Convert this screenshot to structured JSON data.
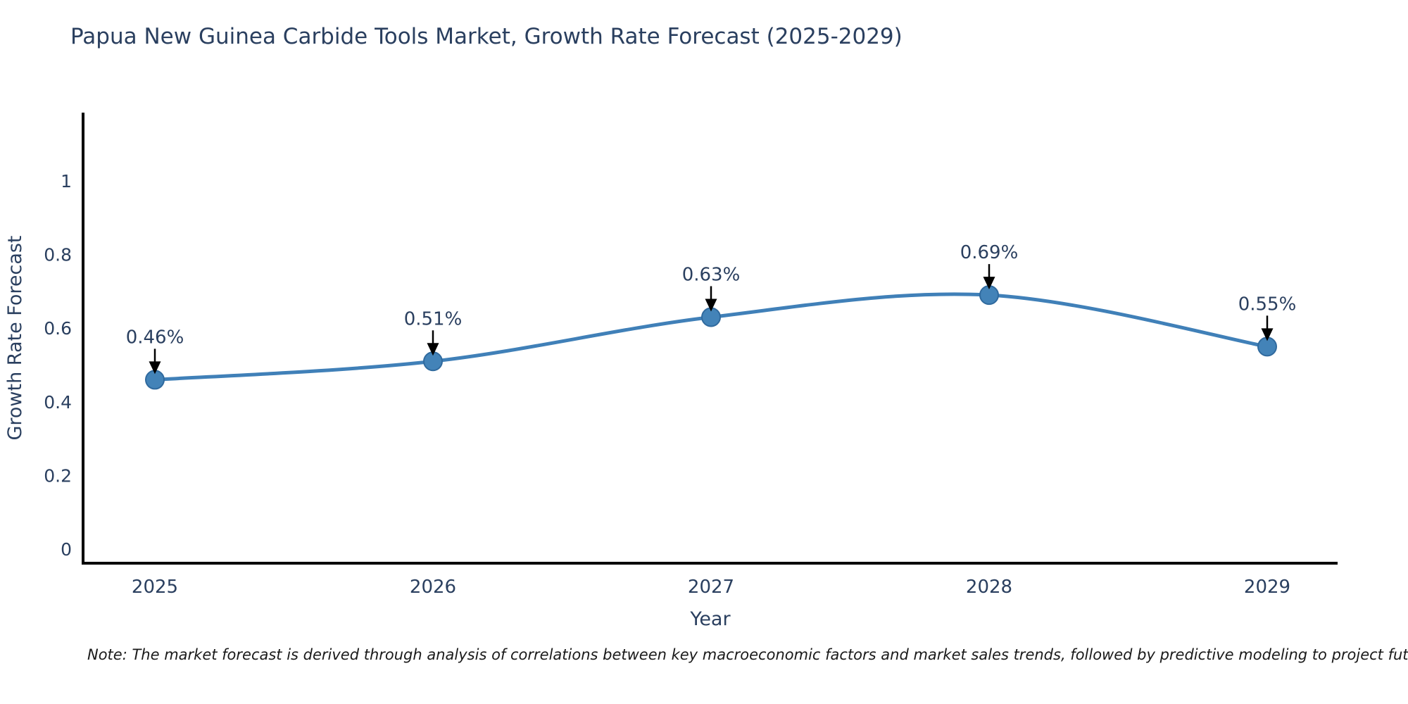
{
  "header": {
    "title": "Papua New Guinea Carbide Tools Market, Growth Rate Forecast (2025-2029)"
  },
  "chart_data": {
    "type": "line",
    "title": "Papua New Guinea Carbide Tools Market, Growth Rate Forecast (2025-2029)",
    "xlabel": "Year",
    "ylabel": "Growth Rate Forecast",
    "categories": [
      "2025",
      "2026",
      "2027",
      "2028",
      "2029"
    ],
    "series": [
      {
        "name": "Growth Rate Forecast",
        "values": [
          0.46,
          0.51,
          0.63,
          0.69,
          0.55
        ]
      }
    ],
    "point_labels": [
      "0.46%",
      "0.51%",
      "0.63%",
      "0.69%",
      "0.55%"
    ],
    "ytick_values": [
      0,
      0.2,
      0.4,
      0.6,
      0.8,
      1
    ],
    "ytick_labels": [
      "0",
      "0.2",
      "0.4",
      "0.6",
      "0.8",
      "1"
    ],
    "ylim": [
      -0.04,
      1.19
    ],
    "grid": false,
    "legend": "none",
    "line_shape": "spline",
    "colors": {
      "line": "#4080b8",
      "marker_fill": "#4383b8",
      "marker_edge": "#306a9e",
      "axis_line": "#000000",
      "text": "#2a3f5f",
      "annotation_arrow": "#000000"
    }
  },
  "note": {
    "text": "Note: The market forecast is derived through analysis of correlations between key macroeconomic factors and market sales trends, followed by predictive modeling to project future sales"
  }
}
